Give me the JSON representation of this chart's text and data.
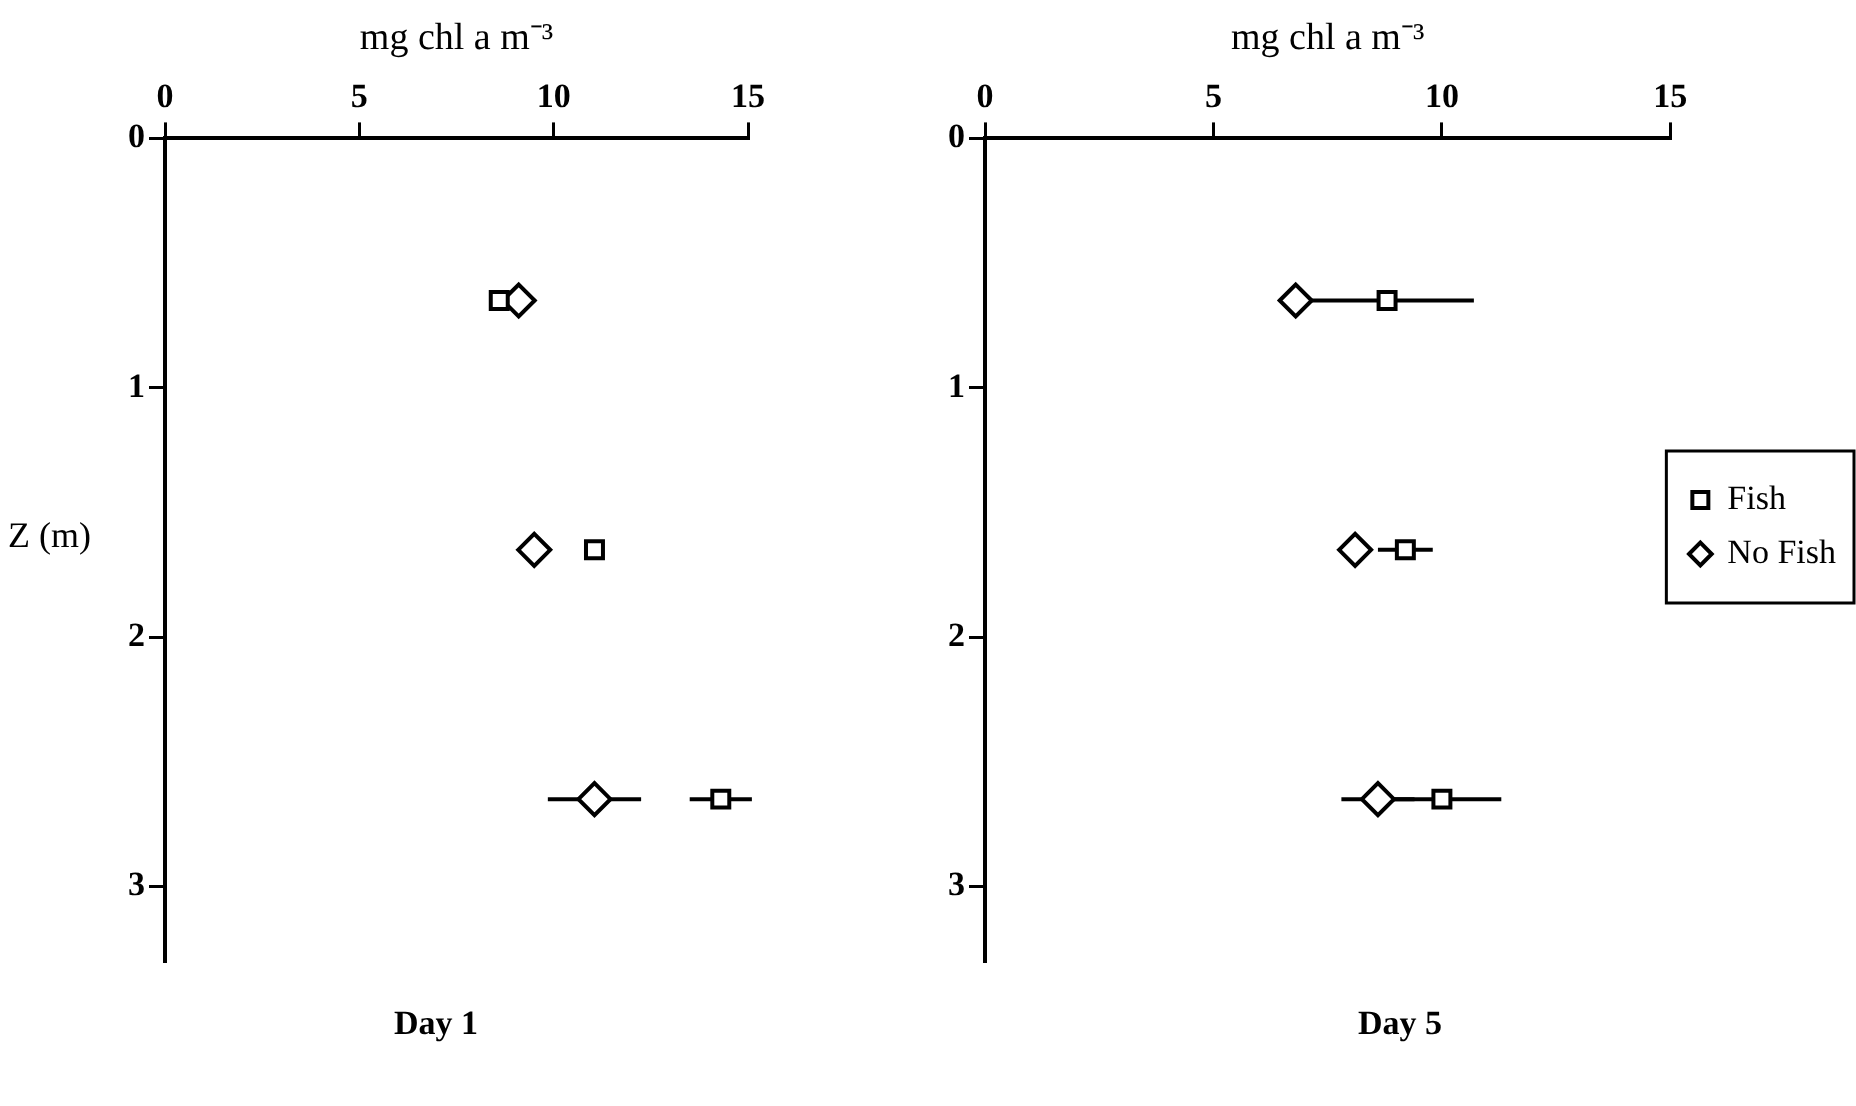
{
  "chart_data": [
    {
      "type": "scatter",
      "title": "Day 1",
      "xlabel": "mg chl a m⁻³",
      "ylabel": "Z (m)",
      "xlim": [
        0,
        15
      ],
      "xticks": [
        0,
        5,
        10,
        15
      ],
      "ylim": [
        3.3,
        0
      ],
      "yticks": [
        0,
        1,
        2,
        3
      ],
      "grid": false,
      "legend": false,
      "series": [
        {
          "color": "#000000",
          "marker": "square",
          "x": [
            8.6,
            11.05,
            14.3
          ],
          "values": [
            0.65,
            1.65,
            2.65
          ],
          "xerrors": [
            null,
            null,
            0.8
          ]
        },
        {
          "color": "#000000",
          "marker": "diamond",
          "x": [
            9.1,
            9.5,
            11.05
          ],
          "values": [
            0.65,
            1.65,
            2.65
          ],
          "xerrors": [
            null,
            null,
            1.2
          ]
        }
      ]
    },
    {
      "type": "scatter",
      "title": "Day 5",
      "xlabel": "mg chl a m⁻³",
      "xlim": [
        0,
        15
      ],
      "xticks": [
        0,
        5,
        10,
        15
      ],
      "ylim": [
        3.3,
        0
      ],
      "yticks": [
        0,
        1,
        2,
        3
      ],
      "grid": false,
      "legend": "right",
      "series": [
        {
          "name": "Fish",
          "color": "#000000",
          "marker": "square",
          "x": [
            8.8,
            9.2,
            10.0
          ],
          "values": [
            0.65,
            1.65,
            2.65
          ],
          "xerrors": [
            1.9,
            0.6,
            1.3
          ]
        },
        {
          "name": "No Fish",
          "color": "#000000",
          "marker": "diamond",
          "x": [
            6.8,
            8.1,
            8.6
          ],
          "values": [
            0.65,
            1.65,
            2.65
          ],
          "xerrors": [
            null,
            null,
            0.8
          ]
        }
      ]
    }
  ]
}
